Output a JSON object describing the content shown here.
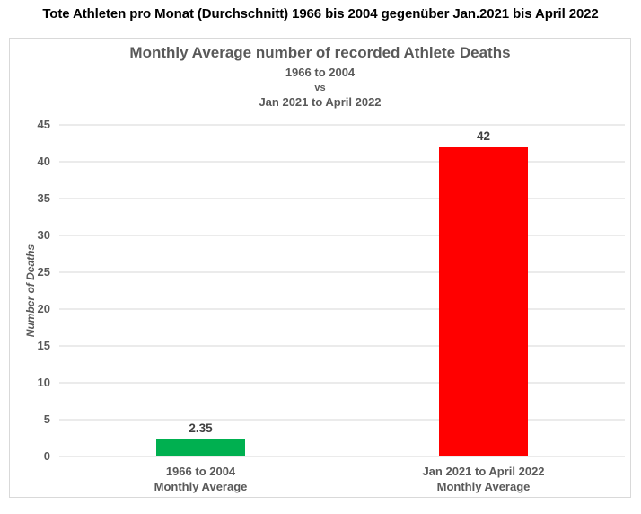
{
  "page": {
    "header_title": "Tote Athleten pro Monat (Durchschnitt) 1966 bis 2004 gegenüber Jan.2021 bis April 2022"
  },
  "chart_data": {
    "type": "bar",
    "title": "Monthly Average number of recorded Athlete Deaths",
    "subtitle": [
      "1966 to 2004",
      "vs",
      "Jan 2021 to April 2022"
    ],
    "categories": [
      "1966 to 2004",
      "Jan 2021 to April 2022"
    ],
    "category_lines": [
      [
        "1966 to 2004",
        "Monthly Average"
      ],
      [
        "Jan 2021 to April 2022",
        "Monthly Average"
      ]
    ],
    "values": [
      2.35,
      42
    ],
    "value_labels": [
      "2.35",
      "42"
    ],
    "bar_colors": [
      "#00B050",
      "#FF0000"
    ],
    "xlabel": "",
    "ylabel": "Number of Deaths",
    "ylim": [
      0,
      45
    ],
    "yticks": [
      0,
      5,
      10,
      15,
      20,
      25,
      30,
      35,
      40,
      45
    ],
    "grid": true,
    "legend": false
  }
}
